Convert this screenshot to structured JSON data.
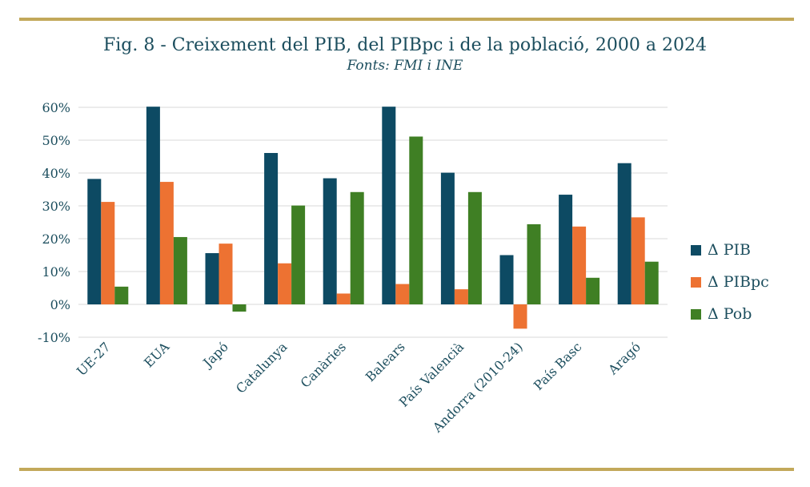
{
  "chart_data": {
    "type": "bar",
    "title": "Fig. 8 - Creixement del PIB, del PIBpc i de la població, 2000 a 2024",
    "subtitle": "Fonts: FMI i INE",
    "categories": [
      "UE-27",
      "EUA",
      "Japó",
      "Catalunya",
      "Canàries",
      "Balears",
      "País Valencià",
      "Andorra (2010-24)",
      "País Basc",
      "Aragó"
    ],
    "series": [
      {
        "name": "Δ PIB",
        "color": "#0d4a63",
        "values": [
          38.2,
          60.2,
          15.6,
          46.1,
          38.4,
          60.2,
          40.1,
          15.0,
          33.4,
          43.0
        ]
      },
      {
        "name": "Δ PIBpc",
        "color": "#ed7232",
        "values": [
          31.2,
          37.3,
          18.5,
          12.5,
          3.3,
          6.2,
          4.6,
          -7.4,
          23.7,
          26.5
        ]
      },
      {
        "name": "Δ Pob",
        "color": "#3f7f24",
        "values": [
          5.4,
          20.5,
          -2.2,
          30.1,
          34.2,
          51.1,
          34.2,
          24.4,
          8.1,
          13.0
        ]
      }
    ],
    "yticks": [
      "60%",
      "50%",
      "40%",
      "30%",
      "20%",
      "10%",
      "0%",
      "-10%"
    ],
    "ylim": [
      -10,
      60
    ],
    "grid": true,
    "legend": "right"
  }
}
